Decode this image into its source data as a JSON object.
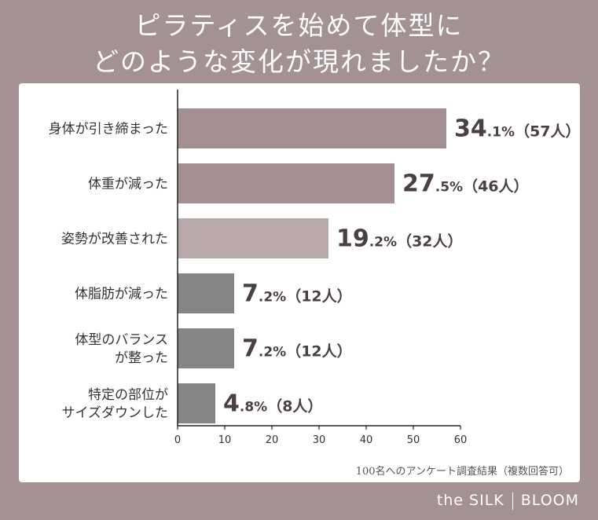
{
  "title_lines": [
    "ピラティスを始めて体型に",
    "どのような変化が現れましたか？"
  ],
  "footnote": "100名へのアンケート調査結果（複数回答可）",
  "brand": {
    "left": "the SILK",
    "right": "BLOOM"
  },
  "chart_data": {
    "type": "bar",
    "orientation": "horizontal",
    "title": "ピラティスを始めて体型にどのような変化が現れましたか？",
    "categories": [
      [
        "身体が引き締まった"
      ],
      [
        "体重が減った"
      ],
      [
        "姿勢が改善された"
      ],
      [
        "体脂肪が減った"
      ],
      [
        "体型のバランス",
        "が整った"
      ],
      [
        "特定の部位が",
        "サイズダウンした"
      ]
    ],
    "values": [
      57,
      46,
      32,
      12,
      12,
      8
    ],
    "pct_int": [
      "34",
      "27",
      "19",
      "7",
      "7",
      "4"
    ],
    "pct_dec": [
      ".1%",
      ".5%",
      ".2%",
      ".2%",
      ".2%",
      ".8%"
    ],
    "count_labels": [
      "（57人）",
      "（46人）",
      "（32人）",
      "（12人）",
      "（12人）",
      "（8人）"
    ],
    "bar_colors": [
      "#a38f92",
      "#a38f92",
      "#b8a8aa",
      "#858585",
      "#858585",
      "#858585"
    ],
    "xlim": [
      0,
      60
    ],
    "xticks": [
      0,
      10,
      20,
      30,
      40,
      50,
      60
    ],
    "grid": false
  }
}
